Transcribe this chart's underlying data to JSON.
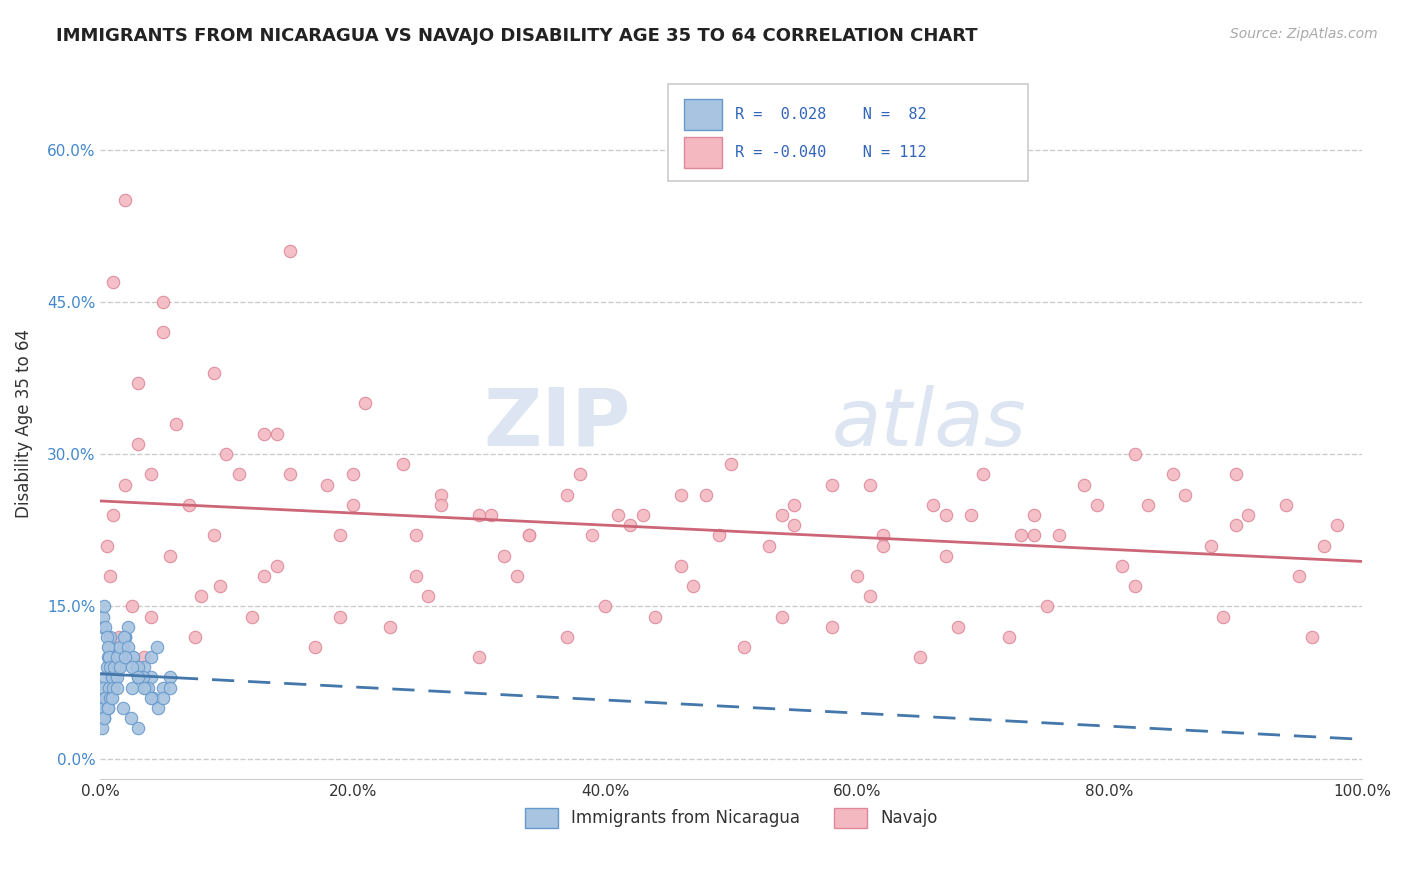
{
  "title": "IMMIGRANTS FROM NICARAGUA VS NAVAJO DISABILITY AGE 35 TO 64 CORRELATION CHART",
  "source_text": "Source: ZipAtlas.com",
  "xlabel": "",
  "ylabel": "Disability Age 35 to 64",
  "xlim": [
    0.0,
    1.0
  ],
  "ylim": [
    -0.02,
    0.68
  ],
  "x_ticks": [
    0.0,
    0.2,
    0.4,
    0.6,
    0.8,
    1.0
  ],
  "x_tick_labels": [
    "0.0%",
    "20.0%",
    "40.0%",
    "60.0%",
    "80.0%",
    "100.0%"
  ],
  "y_ticks": [
    0.0,
    0.15,
    0.3,
    0.45,
    0.6
  ],
  "y_tick_labels": [
    "0.0%",
    "15.0%",
    "30.0%",
    "45.0%",
    "60.0%"
  ],
  "grid_color": "#cccccc",
  "background_color": "#ffffff",
  "watermark_zip": "ZIP",
  "watermark_atlas": "atlas",
  "series1_color": "#a8c4e0",
  "series1_edge": "#6699cc",
  "series1_trend": "#4477aa",
  "series2_color": "#f4b8c1",
  "series2_edge": "#dd8899",
  "series2_trend": "#cc6677",
  "blue_scatter_x": [
    0.001,
    0.002,
    0.003,
    0.004,
    0.005,
    0.006,
    0.007,
    0.008,
    0.01,
    0.012,
    0.015,
    0.018,
    0.02,
    0.025,
    0.03,
    0.035,
    0.04,
    0.045,
    0.05,
    0.055,
    0.001,
    0.002,
    0.003,
    0.004,
    0.005,
    0.006,
    0.007,
    0.008,
    0.009,
    0.01,
    0.012,
    0.014,
    0.016,
    0.018,
    0.02,
    0.022,
    0.025,
    0.028,
    0.032,
    0.036,
    0.04,
    0.001,
    0.002,
    0.003,
    0.005,
    0.007,
    0.009,
    0.011,
    0.013,
    0.016,
    0.019,
    0.022,
    0.026,
    0.03,
    0.034,
    0.038,
    0.042,
    0.046,
    0.05,
    0.055,
    0.001,
    0.002,
    0.003,
    0.004,
    0.006,
    0.008,
    0.01,
    0.013,
    0.016,
    0.02,
    0.025,
    0.03,
    0.035,
    0.04,
    0.001,
    0.003,
    0.006,
    0.009,
    0.013,
    0.018,
    0.024,
    0.03
  ],
  "blue_scatter_y": [
    0.05,
    0.06,
    0.07,
    0.08,
    0.09,
    0.1,
    0.11,
    0.12,
    0.08,
    0.09,
    0.1,
    0.11,
    0.12,
    0.07,
    0.08,
    0.09,
    0.1,
    0.11,
    0.07,
    0.08,
    0.13,
    0.14,
    0.15,
    0.13,
    0.12,
    0.11,
    0.1,
    0.09,
    0.08,
    0.07,
    0.08,
    0.09,
    0.1,
    0.11,
    0.12,
    0.13,
    0.1,
    0.09,
    0.08,
    0.07,
    0.08,
    0.06,
    0.07,
    0.05,
    0.06,
    0.07,
    0.08,
    0.09,
    0.1,
    0.11,
    0.12,
    0.11,
    0.1,
    0.09,
    0.08,
    0.07,
    0.06,
    0.05,
    0.06,
    0.07,
    0.04,
    0.05,
    0.04,
    0.06,
    0.05,
    0.06,
    0.07,
    0.08,
    0.09,
    0.1,
    0.09,
    0.08,
    0.07,
    0.06,
    0.03,
    0.04,
    0.05,
    0.06,
    0.07,
    0.05,
    0.04,
    0.03
  ],
  "pink_scatter_x": [
    0.005,
    0.01,
    0.02,
    0.03,
    0.04,
    0.05,
    0.07,
    0.09,
    0.11,
    0.13,
    0.15,
    0.18,
    0.21,
    0.24,
    0.27,
    0.3,
    0.34,
    0.38,
    0.42,
    0.46,
    0.5,
    0.54,
    0.58,
    0.62,
    0.66,
    0.7,
    0.74,
    0.78,
    0.82,
    0.86,
    0.9,
    0.94,
    0.98,
    0.01,
    0.03,
    0.06,
    0.1,
    0.15,
    0.2,
    0.25,
    0.31,
    0.37,
    0.43,
    0.49,
    0.55,
    0.61,
    0.67,
    0.73,
    0.79,
    0.85,
    0.91,
    0.97,
    0.02,
    0.05,
    0.09,
    0.14,
    0.2,
    0.27,
    0.34,
    0.41,
    0.48,
    0.55,
    0.62,
    0.69,
    0.76,
    0.83,
    0.9,
    0.008,
    0.025,
    0.055,
    0.095,
    0.14,
    0.19,
    0.25,
    0.32,
    0.39,
    0.46,
    0.53,
    0.6,
    0.67,
    0.74,
    0.81,
    0.88,
    0.95,
    0.015,
    0.04,
    0.08,
    0.13,
    0.19,
    0.26,
    0.33,
    0.4,
    0.47,
    0.54,
    0.61,
    0.68,
    0.75,
    0.82,
    0.89,
    0.96,
    0.035,
    0.075,
    0.12,
    0.17,
    0.23,
    0.3,
    0.37,
    0.44,
    0.51,
    0.58,
    0.65,
    0.72
  ],
  "pink_scatter_y": [
    0.21,
    0.24,
    0.27,
    0.31,
    0.28,
    0.42,
    0.25,
    0.22,
    0.28,
    0.32,
    0.5,
    0.27,
    0.35,
    0.29,
    0.26,
    0.24,
    0.22,
    0.28,
    0.23,
    0.26,
    0.29,
    0.24,
    0.27,
    0.22,
    0.25,
    0.28,
    0.24,
    0.27,
    0.3,
    0.26,
    0.28,
    0.25,
    0.23,
    0.47,
    0.37,
    0.33,
    0.3,
    0.28,
    0.25,
    0.22,
    0.24,
    0.26,
    0.24,
    0.22,
    0.25,
    0.27,
    0.24,
    0.22,
    0.25,
    0.28,
    0.24,
    0.21,
    0.55,
    0.45,
    0.38,
    0.32,
    0.28,
    0.25,
    0.22,
    0.24,
    0.26,
    0.23,
    0.21,
    0.24,
    0.22,
    0.25,
    0.23,
    0.18,
    0.15,
    0.2,
    0.17,
    0.19,
    0.22,
    0.18,
    0.2,
    0.22,
    0.19,
    0.21,
    0.18,
    0.2,
    0.22,
    0.19,
    0.21,
    0.18,
    0.12,
    0.14,
    0.16,
    0.18,
    0.14,
    0.16,
    0.18,
    0.15,
    0.17,
    0.14,
    0.16,
    0.13,
    0.15,
    0.17,
    0.14,
    0.12,
    0.1,
    0.12,
    0.14,
    0.11,
    0.13,
    0.1,
    0.12,
    0.14,
    0.11,
    0.13,
    0.1,
    0.12
  ]
}
